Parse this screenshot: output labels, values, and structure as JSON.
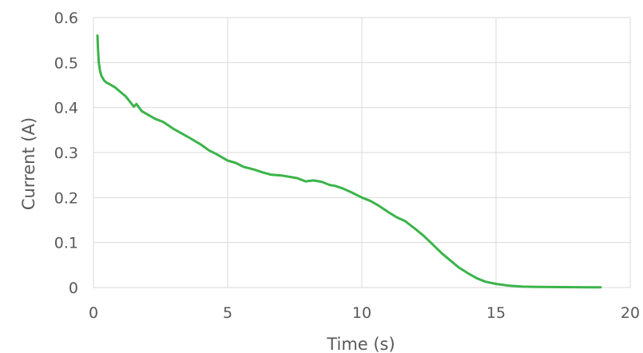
{
  "chart_data": {
    "type": "line",
    "title": "",
    "xlabel": "Time (s)",
    "ylabel": "Current (A)",
    "xlim": [
      0,
      20
    ],
    "ylim": [
      0,
      0.6
    ],
    "xticks": [
      0,
      5,
      10,
      15,
      20
    ],
    "yticks": [
      0,
      0.1,
      0.2,
      0.3,
      0.4,
      0.5,
      0.6
    ],
    "xtick_labels": [
      "0",
      "5",
      "10",
      "15",
      "20"
    ],
    "ytick_labels": [
      "0",
      "0.1",
      "0.2",
      "0.3",
      "0.4",
      "0.5",
      "0.6"
    ],
    "grid": true,
    "legend": false,
    "colors": {
      "series": "#3bb44a",
      "grid": "#d9d9d9",
      "text": "#595959"
    },
    "series": [
      {
        "x": [
          0.15,
          0.17,
          0.2,
          0.25,
          0.3,
          0.4,
          0.5,
          0.6,
          0.8,
          1.0,
          1.2,
          1.4,
          1.5,
          1.6,
          1.8,
          2.0,
          2.3,
          2.6,
          3.0,
          3.3,
          3.6,
          4.0,
          4.3,
          4.6,
          5.0,
          5.3,
          5.6,
          6.0,
          6.3,
          6.6,
          7.0,
          7.3,
          7.6,
          7.9,
          8.2,
          8.5,
          8.8,
          9.0,
          9.3,
          9.6,
          10.0,
          10.3,
          10.6,
          11.0,
          11.3,
          11.6,
          12.0,
          12.3,
          12.6,
          13.0,
          13.3,
          13.6,
          14.0,
          14.3,
          14.6,
          15.0,
          15.5,
          16.0,
          16.5,
          17.0,
          17.5,
          18.0,
          18.5,
          18.9
        ],
        "y": [
          0.56,
          0.53,
          0.5,
          0.48,
          0.47,
          0.46,
          0.455,
          0.452,
          0.445,
          0.435,
          0.425,
          0.41,
          0.402,
          0.408,
          0.392,
          0.385,
          0.375,
          0.368,
          0.352,
          0.342,
          0.332,
          0.318,
          0.305,
          0.296,
          0.282,
          0.277,
          0.268,
          0.262,
          0.256,
          0.251,
          0.249,
          0.246,
          0.243,
          0.236,
          0.238,
          0.235,
          0.228,
          0.226,
          0.22,
          0.212,
          0.2,
          0.193,
          0.183,
          0.167,
          0.156,
          0.148,
          0.13,
          0.115,
          0.098,
          0.075,
          0.06,
          0.045,
          0.03,
          0.02,
          0.013,
          0.008,
          0.004,
          0.002,
          0.0015,
          0.001,
          0.0008,
          0.0007,
          0.0006,
          0.0005
        ]
      }
    ]
  }
}
